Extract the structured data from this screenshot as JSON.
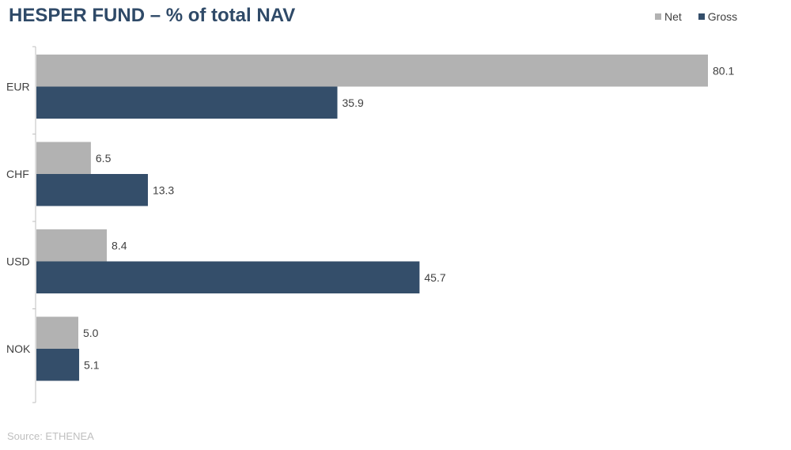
{
  "chart_data": {
    "type": "bar",
    "orientation": "horizontal",
    "title": "HESPER FUND – % of total NAV",
    "categories": [
      "EUR",
      "CHF",
      "USD",
      "NOK"
    ],
    "series": [
      {
        "name": "Net",
        "values": [
          80.1,
          6.5,
          8.4,
          5.0
        ],
        "color": "#b2b2b2"
      },
      {
        "name": "Gross",
        "values": [
          35.9,
          13.3,
          45.7,
          5.1
        ],
        "color": "#344e6a"
      }
    ],
    "value_labels": [
      [
        "80.1",
        "6.5",
        "8.4",
        "5.0"
      ],
      [
        "35.9",
        "13.3",
        "45.7",
        "5.1"
      ]
    ],
    "xlim": [
      0,
      80.1
    ],
    "grid": false,
    "legend": "top-right",
    "source": "Source: ETHENEA"
  }
}
